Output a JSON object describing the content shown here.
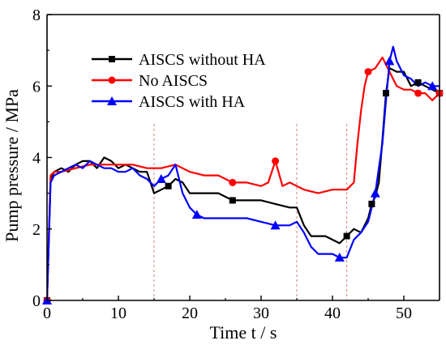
{
  "chart_data": {
    "type": "line",
    "xlabel": "Time  t / s",
    "ylabel": "Pump pressure  / MPa",
    "xlim": [
      0,
      55
    ],
    "ylim": [
      0,
      8
    ],
    "xticks": [
      "0",
      "10",
      "20",
      "30",
      "40",
      "50"
    ],
    "yticks": [
      "0",
      "2",
      "4",
      "6",
      "8"
    ],
    "grid": false,
    "legend_position": "top-left",
    "reference_lines_x": [
      15,
      35,
      42
    ],
    "reference_line_color": "#d98080",
    "series": [
      {
        "name": "AISCS without HA",
        "color": "#000000",
        "marker": "square",
        "x": [
          0,
          0.5,
          1,
          2,
          3,
          4,
          5,
          6,
          7,
          8,
          9,
          10,
          11,
          12,
          13,
          14,
          15,
          16,
          17,
          18,
          19,
          20,
          22,
          24,
          26,
          28,
          30,
          32,
          34,
          35,
          36,
          37,
          38,
          39,
          40,
          41,
          42,
          43,
          44,
          45,
          45.5,
          46,
          46.5,
          47,
          47.5,
          48,
          49,
          50,
          51,
          52,
          53,
          54,
          55
        ],
        "y": [
          0,
          3.4,
          3.6,
          3.7,
          3.6,
          3.8,
          3.9,
          3.9,
          3.7,
          4.0,
          3.9,
          3.7,
          3.8,
          3.7,
          3.6,
          3.6,
          3.0,
          3.1,
          3.2,
          3.4,
          3.3,
          3.0,
          3.0,
          3.0,
          2.8,
          2.8,
          2.8,
          2.7,
          2.6,
          2.6,
          2.1,
          1.8,
          1.8,
          1.8,
          1.7,
          1.6,
          1.8,
          2.0,
          1.9,
          2.3,
          2.7,
          2.9,
          3.3,
          4.5,
          5.8,
          6.5,
          6.4,
          6.4,
          6.0,
          6.1,
          6.0,
          5.9,
          5.8
        ]
      },
      {
        "name": "No AISCS",
        "color": "#ff0000",
        "marker": "circle",
        "x": [
          0,
          0.5,
          1,
          2,
          4,
          6,
          8,
          10,
          12,
          14,
          16,
          18,
          20,
          22,
          24,
          26,
          28,
          30,
          31,
          32,
          33,
          34,
          36,
          38,
          40,
          42,
          43,
          43.5,
          44,
          44.5,
          45,
          46,
          47,
          48,
          49,
          50,
          51,
          52,
          53,
          54,
          55
        ],
        "y": [
          0,
          3.5,
          3.6,
          3.6,
          3.7,
          3.8,
          3.8,
          3.8,
          3.8,
          3.7,
          3.7,
          3.8,
          3.6,
          3.5,
          3.5,
          3.3,
          3.3,
          3.2,
          3.3,
          3.9,
          3.2,
          3.3,
          3.1,
          3.0,
          3.1,
          3.1,
          3.3,
          4.4,
          5.3,
          6.0,
          6.4,
          6.5,
          6.8,
          6.4,
          6.0,
          5.9,
          5.9,
          5.8,
          5.8,
          5.6,
          5.8
        ]
      },
      {
        "name": "AISCS with HA",
        "color": "#0000ff",
        "marker": "triangle",
        "x": [
          0,
          0.5,
          1,
          2,
          3,
          4,
          5,
          6,
          7,
          8,
          9,
          10,
          11,
          12,
          13,
          14,
          15,
          16,
          17,
          18,
          19,
          20,
          21,
          22,
          24,
          26,
          28,
          30,
          32,
          34,
          35,
          36,
          37,
          38,
          39,
          40,
          41,
          42,
          43,
          44,
          45,
          46,
          46.5,
          47,
          47.5,
          48,
          48.5,
          49,
          50,
          51,
          52,
          53,
          54,
          55
        ],
        "y": [
          0,
          3.3,
          3.5,
          3.6,
          3.7,
          3.8,
          3.7,
          3.9,
          3.8,
          3.7,
          3.7,
          3.6,
          3.6,
          3.7,
          3.5,
          3.4,
          3.2,
          3.4,
          3.5,
          3.8,
          3.0,
          2.6,
          2.4,
          2.3,
          2.3,
          2.3,
          2.3,
          2.2,
          2.1,
          2.1,
          2.2,
          1.9,
          1.5,
          1.3,
          1.3,
          1.3,
          1.2,
          1.2,
          1.7,
          1.9,
          2.2,
          3.0,
          3.7,
          4.4,
          5.6,
          6.7,
          7.1,
          6.7,
          6.3,
          6.2,
          6.0,
          6.1,
          6.0,
          6.0
        ]
      }
    ]
  }
}
